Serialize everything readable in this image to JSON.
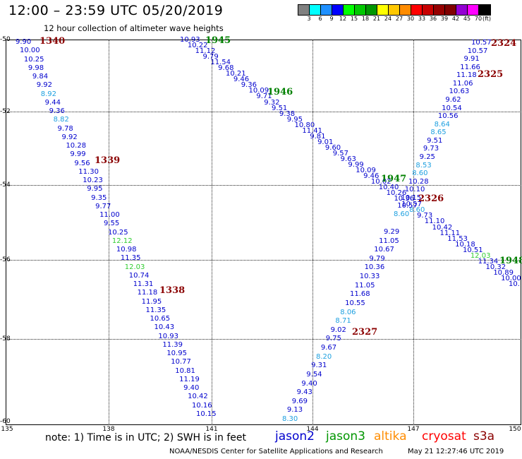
{
  "header": {
    "title": "12:00 – 23:59 UTC 05/20/2019",
    "subtitle": "12 hour collection of altimeter wave heights"
  },
  "colorbar": {
    "unit": "(ft)",
    "colors": [
      "#808080",
      "#00ffff",
      "#1e90ff",
      "#0000ff",
      "#00ff00",
      "#00c800",
      "#009600",
      "#ffff00",
      "#ffc800",
      "#ff8c00",
      "#ff0000",
      "#c80000",
      "#960000",
      "#800000",
      "#9400d3",
      "#ff00ff",
      "#000000"
    ],
    "labels": [
      "3",
      "6",
      "9",
      "12",
      "15",
      "18",
      "21",
      "24",
      "27",
      "30",
      "33",
      "36",
      "39",
      "42",
      "45",
      "70",
      "(ft)"
    ]
  },
  "axes": {
    "lat_labels": [
      "-50",
      "-52",
      "-54",
      "-56",
      "-58",
      "-60"
    ],
    "lon_labels": [
      "135",
      "138",
      "141",
      "144",
      "147",
      "150"
    ]
  },
  "passes": [
    {
      "id": "1340",
      "color": "#8b0000"
    },
    {
      "id": "1339",
      "color": "#8b0000"
    },
    {
      "id": "1338",
      "color": "#8b0000"
    },
    {
      "id": "1945",
      "color": "#008000"
    },
    {
      "id": "1946",
      "color": "#008000"
    },
    {
      "id": "1947",
      "color": "#008000"
    },
    {
      "id": "1948",
      "color": "#008000"
    },
    {
      "id": "2324",
      "color": "#8b0000"
    },
    {
      "id": "2325",
      "color": "#8b0000"
    },
    {
      "id": "2326",
      "color": "#8b0000"
    },
    {
      "id": "2327",
      "color": "#8b0000"
    }
  ],
  "tracks": {
    "t1340": [
      "9.90",
      "10.00",
      "10.25",
      "9.98",
      "9.84",
      "9.92",
      "8.92",
      "9.44",
      "9.36",
      "8.82",
      "9.78",
      "9.92",
      "10.28",
      "9.99",
      "9.56",
      "11.30",
      "10.23",
      "9.95",
      "9.35",
      "9.77",
      "11.00",
      "9.55",
      "10.25",
      "12.12",
      "10.98",
      "11.35",
      "12.03",
      "10.74",
      "11.31",
      "11.18",
      "11.95",
      "11.35",
      "10.65",
      "10.43",
      "10.93",
      "11.39",
      "10.95",
      "10.77",
      "10.81",
      "11.19",
      "9.40",
      "10.42",
      "10.16",
      "10.15"
    ],
    "t1945": [
      "10.93",
      "10.22",
      "11.12",
      "9.79",
      "11.54",
      "9.68",
      "10.21",
      "9.46",
      "9.36",
      "10.09",
      "9.71",
      "9.32",
      "9.51",
      "9.38",
      "9.95",
      "10.80",
      "11.41",
      "9.81",
      "9.01",
      "9.60",
      "9.57",
      "9.63",
      "9.99",
      "10.09",
      "9.46",
      "10.02",
      "10.40",
      "10.26",
      "10.36",
      "10.57",
      "8.60",
      "9.73",
      "11.10",
      "10.42",
      "11.11",
      "11.53",
      "10.18",
      "10.51",
      "12.03",
      "11.34",
      "10.32",
      "10.89",
      "10.00",
      "10."
    ],
    "t2324": [
      "10.57",
      "10.57",
      "9.91",
      "11.66",
      "11.18",
      "11.06",
      "10.63",
      "9.62",
      "10.54",
      "10.56",
      "8.64",
      "8.65",
      "9.51",
      "9.73",
      "9.25",
      "8.53",
      "8.60",
      "10.28",
      "10.10",
      "10.15",
      "10.57",
      "8.60"
    ],
    "t2327": [
      "9.29",
      "11.05",
      "10.67",
      "9.79",
      "10.36",
      "10.33",
      "11.05",
      "11.68",
      "10.55",
      "8.06",
      "8.71",
      "9.02",
      "9.75",
      "9.67",
      "8.20",
      "9.31",
      "9.54",
      "9.40",
      "9.43",
      "9.69",
      "9.13",
      "8.30"
    ]
  },
  "note": "note:  1) Time is in UTC;  2) SWH is in feet",
  "satellites": [
    {
      "name": "jason2",
      "color": "#0000cd"
    },
    {
      "name": "jason3",
      "color": "#009600"
    },
    {
      "name": "altika",
      "color": "#ff8c00"
    },
    {
      "name": "cryosat",
      "color": "#ff0000"
    },
    {
      "name": "s3a",
      "color": "#8b0000"
    }
  ],
  "credit": "NOAA/NESDIS Center for Satellite Applications and Research",
  "timestamp": "May 21 12:27:46 UTC 2019"
}
